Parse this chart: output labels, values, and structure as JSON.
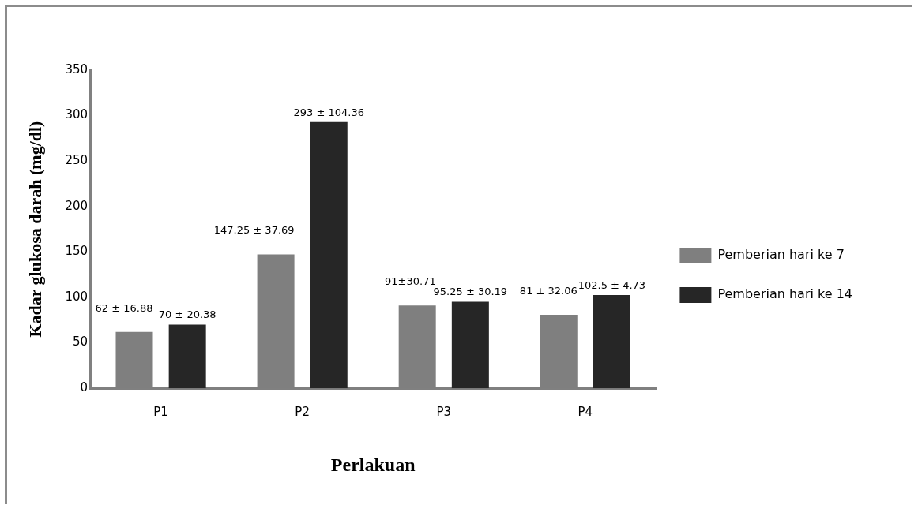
{
  "chart_data": {
    "type": "bar",
    "xlabel": "Perlakuan",
    "ylabel": "Kadar glukosa darah (mg/dl)",
    "categories": [
      "P1",
      "P2",
      "P3",
      "P4"
    ],
    "series": [
      {
        "name": "Pemberian hari ke 7",
        "color": "#7f7f7f",
        "values": [
          62,
          147.25,
          91,
          81
        ],
        "value_labels": [
          "62 ± 16.88",
          "147.25 ± 37.69",
          "91±30.71",
          "81 ± 32.06"
        ]
      },
      {
        "name": "Pemberian hari ke 14",
        "color": "#262626",
        "values": [
          70,
          293,
          95.25,
          102.5
        ],
        "value_labels": [
          "70 ± 20.38",
          "293 ± 104.36",
          "95.25 ± 30.19",
          "102.5 ± 4.73"
        ]
      }
    ],
    "ylim": [
      0,
      350
    ],
    "yticks": [
      0,
      50,
      100,
      150,
      200,
      250,
      300,
      350
    ],
    "grid": false,
    "legend": "right"
  }
}
